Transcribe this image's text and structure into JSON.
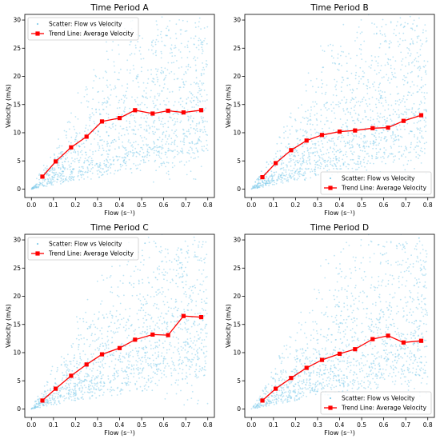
{
  "chart_data": [
    {
      "type": "scatter",
      "title": "Time Period A",
      "xlabel": "Flow (s⁻¹)",
      "ylabel": "Velocity (m/s)",
      "xlim": [
        -0.03,
        0.83
      ],
      "ylim": [
        -1.5,
        31
      ],
      "xticks": [
        0.0,
        0.1,
        0.2,
        0.3,
        0.4,
        0.5,
        0.6,
        0.7,
        0.8
      ],
      "yticks": [
        0,
        5,
        10,
        15,
        20,
        25,
        30
      ],
      "legend_position": "upper-left",
      "scatter_color": "#87ceeb",
      "series": [
        {
          "name": "Scatter: Flow vs Velocity",
          "kind": "scatter",
          "color": "#87ceeb",
          "note": "dense point cloud spanning flow 0-0.8, velocity 0-30"
        },
        {
          "name": "Trend Line: Average Velocity",
          "kind": "line",
          "color": "#ff0000",
          "x": [
            0.05,
            0.11,
            0.18,
            0.25,
            0.32,
            0.4,
            0.47,
            0.55,
            0.62,
            0.69,
            0.77
          ],
          "y": [
            2.2,
            4.9,
            7.4,
            9.3,
            12.0,
            12.6,
            14.0,
            13.4,
            13.9,
            13.6,
            14.0
          ]
        }
      ]
    },
    {
      "type": "scatter",
      "title": "Time Period B",
      "xlabel": "Flow (s⁻¹)",
      "ylabel": "Velocity (m/s)",
      "xlim": [
        -0.03,
        0.83
      ],
      "ylim": [
        -1.5,
        31
      ],
      "xticks": [
        0.0,
        0.1,
        0.2,
        0.3,
        0.4,
        0.5,
        0.6,
        0.7,
        0.8
      ],
      "yticks": [
        0,
        5,
        10,
        15,
        20,
        25,
        30
      ],
      "legend_position": "lower-right",
      "scatter_color": "#87ceeb",
      "series": [
        {
          "name": "Scatter: Flow vs Velocity",
          "kind": "scatter",
          "color": "#87ceeb",
          "note": "dense point cloud spanning flow 0-0.8, velocity 0-30"
        },
        {
          "name": "Trend Line: Average Velocity",
          "kind": "line",
          "color": "#ff0000",
          "x": [
            0.05,
            0.11,
            0.18,
            0.25,
            0.32,
            0.4,
            0.47,
            0.55,
            0.62,
            0.69,
            0.77
          ],
          "y": [
            2.1,
            4.6,
            6.9,
            8.6,
            9.6,
            10.2,
            10.4,
            10.8,
            10.9,
            12.1,
            13.1
          ]
        }
      ]
    },
    {
      "type": "scatter",
      "title": "Time Period C",
      "xlabel": "Flow (s⁻¹)",
      "ylabel": "Velocity (m/s)",
      "xlim": [
        -0.03,
        0.83
      ],
      "ylim": [
        -1.5,
        31
      ],
      "xticks": [
        0.0,
        0.1,
        0.2,
        0.3,
        0.4,
        0.5,
        0.6,
        0.7,
        0.8
      ],
      "yticks": [
        0,
        5,
        10,
        15,
        20,
        25,
        30
      ],
      "legend_position": "upper-left",
      "scatter_color": "#87ceeb",
      "series": [
        {
          "name": "Scatter: Flow vs Velocity",
          "kind": "scatter",
          "color": "#87ceeb",
          "note": "dense point cloud spanning flow 0-0.8, velocity 0-30"
        },
        {
          "name": "Trend Line: Average Velocity",
          "kind": "line",
          "color": "#ff0000",
          "x": [
            0.05,
            0.11,
            0.18,
            0.25,
            0.32,
            0.4,
            0.47,
            0.55,
            0.62,
            0.69,
            0.77
          ],
          "y": [
            1.5,
            3.6,
            5.9,
            7.9,
            9.7,
            10.8,
            12.3,
            13.2,
            13.1,
            16.5,
            16.3
          ]
        }
      ]
    },
    {
      "type": "scatter",
      "title": "Time Period D",
      "xlabel": "Flow (s⁻¹)",
      "ylabel": "Velocity (m/s)",
      "xlim": [
        -0.03,
        0.83
      ],
      "ylim": [
        -1.5,
        31
      ],
      "xticks": [
        0.0,
        0.1,
        0.2,
        0.3,
        0.4,
        0.5,
        0.6,
        0.7,
        0.8
      ],
      "yticks": [
        0,
        5,
        10,
        15,
        20,
        25,
        30
      ],
      "legend_position": "lower-right",
      "scatter_color": "#87ceeb",
      "series": [
        {
          "name": "Scatter: Flow vs Velocity",
          "kind": "scatter",
          "color": "#87ceeb",
          "note": "dense point cloud spanning flow 0-0.8, velocity 0-30"
        },
        {
          "name": "Trend Line: Average Velocity",
          "kind": "line",
          "color": "#ff0000",
          "x": [
            0.05,
            0.11,
            0.18,
            0.25,
            0.32,
            0.4,
            0.47,
            0.55,
            0.62,
            0.69,
            0.77
          ],
          "y": [
            1.5,
            3.6,
            5.5,
            7.3,
            8.7,
            9.8,
            10.6,
            12.4,
            13.0,
            11.8,
            12.1
          ]
        }
      ]
    }
  ]
}
